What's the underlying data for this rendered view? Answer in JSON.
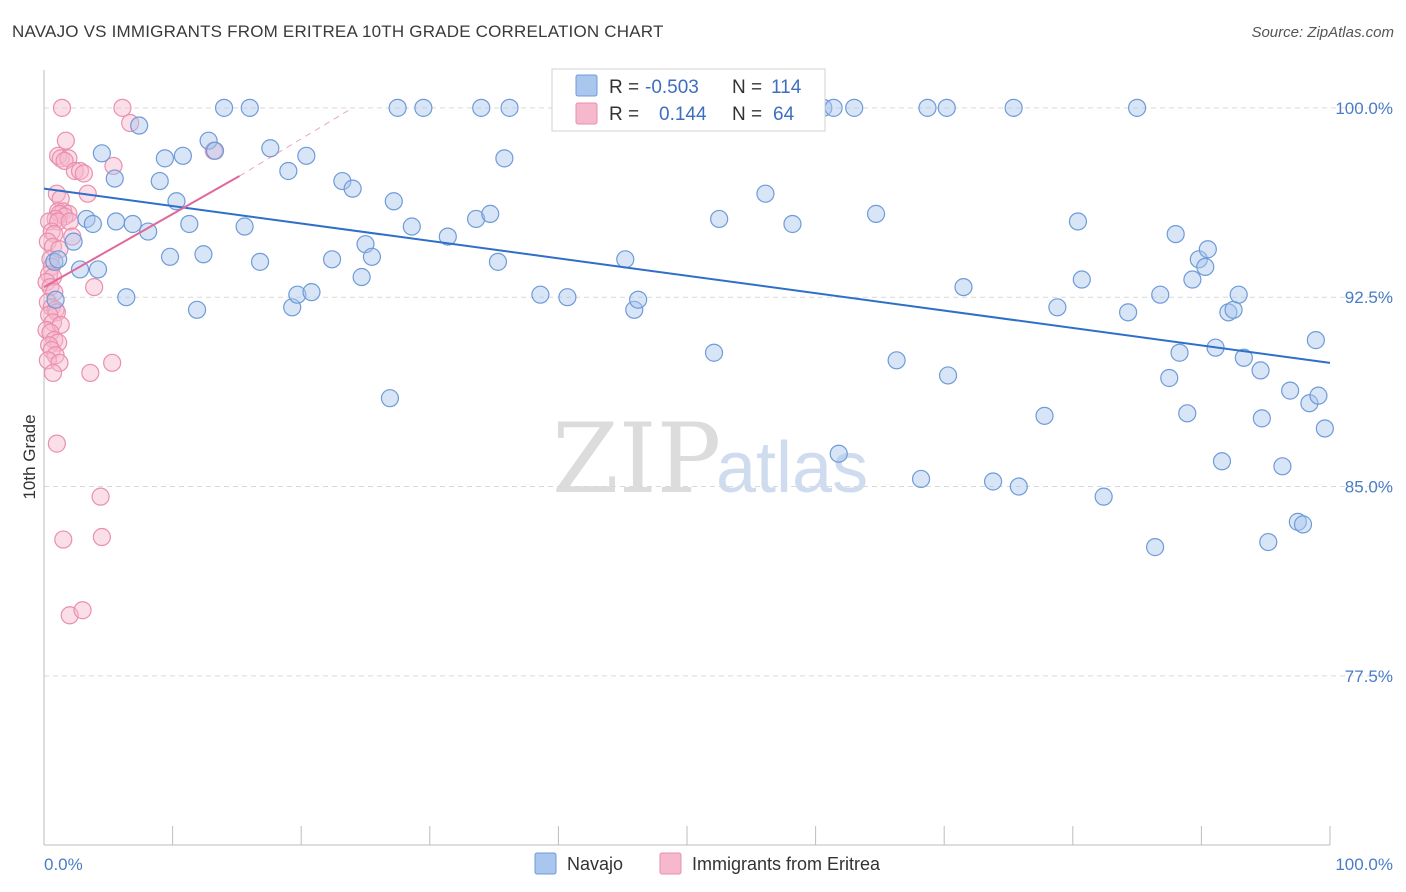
{
  "title": "NAVAJO VS IMMIGRANTS FROM ERITREA 10TH GRADE CORRELATION CHART",
  "source": "Source: ZipAtlas.com",
  "watermark": {
    "part1": "ZIP",
    "part2": "atlas"
  },
  "colors": {
    "navajo_fill": "#a9c6ee",
    "navajo_stroke": "#6f9bd8",
    "navajo_line": "#2f6fc9",
    "eritrea_fill": "#f6b8cc",
    "eritrea_stroke": "#ea8fad",
    "eritrea_line": "#e0689a",
    "axis_label": "#4a7cc7",
    "grid": "#d9d9d9"
  },
  "legend_stats": {
    "rows": [
      {
        "r_label": "R =",
        "r_value": "-0.503",
        "n_label": "N =",
        "n_value": "114"
      },
      {
        "r_label": "R =",
        "r_value": "0.144",
        "n_label": "N =",
        "n_value": "64"
      }
    ]
  },
  "chart_data": {
    "type": "scatter",
    "ylabel": "10th Grade",
    "xlim": [
      0,
      100
    ],
    "ylim": [
      70.8,
      101.5
    ],
    "x_tick_labels": [
      "0.0%",
      "100.0%"
    ],
    "y_ticks": [
      100.0,
      92.5,
      85.0,
      77.5
    ],
    "y_tick_labels": [
      "100.0%",
      "92.5%",
      "85.0%",
      "77.5%"
    ],
    "grid": true,
    "legend_position": "bottom",
    "series": [
      {
        "name": "Navajo",
        "trend": {
          "x": [
            0,
            100
          ],
          "y": [
            96.8,
            89.9
          ]
        },
        "points": [
          [
            0.8,
            93.9
          ],
          [
            0.9,
            92.4
          ],
          [
            1.1,
            94.0
          ],
          [
            2.3,
            94.7
          ],
          [
            2.8,
            93.6
          ],
          [
            3.3,
            95.6
          ],
          [
            3.8,
            95.4
          ],
          [
            4.2,
            93.6
          ],
          [
            4.5,
            98.2
          ],
          [
            5.5,
            97.2
          ],
          [
            5.6,
            95.5
          ],
          [
            6.4,
            92.5
          ],
          [
            6.9,
            95.4
          ],
          [
            7.4,
            99.3
          ],
          [
            8.1,
            95.1
          ],
          [
            9.0,
            97.1
          ],
          [
            9.4,
            98.0
          ],
          [
            9.8,
            94.1
          ],
          [
            10.3,
            96.3
          ],
          [
            10.8,
            98.1
          ],
          [
            11.3,
            95.4
          ],
          [
            11.9,
            92.0
          ],
          [
            12.4,
            94.2
          ],
          [
            12.8,
            98.7
          ],
          [
            13.3,
            98.3
          ],
          [
            14.0,
            100.0
          ],
          [
            15.6,
            95.3
          ],
          [
            16.0,
            100.0
          ],
          [
            16.8,
            93.9
          ],
          [
            17.6,
            98.4
          ],
          [
            19.0,
            97.5
          ],
          [
            19.3,
            92.1
          ],
          [
            19.7,
            92.6
          ],
          [
            20.4,
            98.1
          ],
          [
            20.8,
            92.7
          ],
          [
            22.4,
            94.0
          ],
          [
            23.2,
            97.1
          ],
          [
            24.0,
            96.8
          ],
          [
            24.7,
            93.3
          ],
          [
            25.0,
            94.6
          ],
          [
            25.5,
            94.1
          ],
          [
            26.9,
            88.5
          ],
          [
            27.2,
            96.3
          ],
          [
            27.5,
            100.0
          ],
          [
            28.6,
            95.3
          ],
          [
            29.5,
            100.0
          ],
          [
            31.4,
            94.9
          ],
          [
            33.6,
            95.6
          ],
          [
            34.0,
            100.0
          ],
          [
            34.7,
            95.8
          ],
          [
            35.3,
            93.9
          ],
          [
            35.8,
            98.0
          ],
          [
            36.2,
            100.0
          ],
          [
            38.6,
            92.6
          ],
          [
            40.7,
            92.5
          ],
          [
            45.2,
            94.0
          ],
          [
            45.9,
            92.0
          ],
          [
            46.2,
            92.4
          ],
          [
            46.9,
            100.0
          ],
          [
            47.4,
            100.0
          ],
          [
            49.5,
            100.0
          ],
          [
            52.1,
            90.3
          ],
          [
            52.5,
            95.6
          ],
          [
            54.5,
            100.0
          ],
          [
            56.1,
            96.6
          ],
          [
            58.2,
            95.4
          ],
          [
            60.6,
            100.0
          ],
          [
            61.4,
            100.0
          ],
          [
            61.8,
            86.3
          ],
          [
            63.0,
            100.0
          ],
          [
            64.7,
            95.8
          ],
          [
            66.3,
            90.0
          ],
          [
            68.2,
            85.3
          ],
          [
            68.7,
            100.0
          ],
          [
            70.2,
            100.0
          ],
          [
            70.3,
            89.4
          ],
          [
            71.5,
            92.9
          ],
          [
            73.8,
            85.2
          ],
          [
            75.4,
            100.0
          ],
          [
            75.8,
            85.0
          ],
          [
            77.8,
            87.8
          ],
          [
            78.8,
            92.1
          ],
          [
            80.4,
            95.5
          ],
          [
            80.7,
            93.2
          ],
          [
            82.4,
            84.6
          ],
          [
            84.3,
            91.9
          ],
          [
            85.0,
            100.0
          ],
          [
            86.4,
            82.6
          ],
          [
            86.8,
            92.6
          ],
          [
            87.5,
            89.3
          ],
          [
            88.0,
            95.0
          ],
          [
            88.3,
            90.3
          ],
          [
            88.9,
            87.9
          ],
          [
            89.3,
            93.2
          ],
          [
            89.8,
            94.0
          ],
          [
            90.3,
            93.7
          ],
          [
            90.5,
            94.4
          ],
          [
            91.1,
            90.5
          ],
          [
            91.6,
            86.0
          ],
          [
            92.1,
            91.9
          ],
          [
            92.5,
            92.0
          ],
          [
            92.9,
            92.6
          ],
          [
            93.3,
            90.1
          ],
          [
            94.6,
            89.6
          ],
          [
            94.7,
            87.7
          ],
          [
            95.2,
            82.8
          ],
          [
            96.3,
            85.8
          ],
          [
            96.9,
            88.8
          ],
          [
            97.5,
            83.6
          ],
          [
            97.9,
            83.5
          ],
          [
            98.4,
            88.3
          ],
          [
            98.9,
            90.8
          ],
          [
            99.1,
            88.6
          ],
          [
            99.6,
            87.3
          ]
        ]
      },
      {
        "name": "Immigrants from Eritrea",
        "trend": {
          "x": [
            0,
            15.2
          ],
          "y": [
            92.9,
            97.3
          ]
        },
        "trend_dashed": {
          "x": [
            15.2,
            24.0
          ],
          "y": [
            97.3,
            100.0
          ]
        },
        "points": [
          [
            1.4,
            100.0
          ],
          [
            6.1,
            100.0
          ],
          [
            6.7,
            99.4
          ],
          [
            1.7,
            98.7
          ],
          [
            13.2,
            98.3
          ],
          [
            1.1,
            98.1
          ],
          [
            1.3,
            98.0
          ],
          [
            1.9,
            98.0
          ],
          [
            1.6,
            97.9
          ],
          [
            5.4,
            97.7
          ],
          [
            2.4,
            97.5
          ],
          [
            2.8,
            97.5
          ],
          [
            3.1,
            97.4
          ],
          [
            1.0,
            96.6
          ],
          [
            3.4,
            96.6
          ],
          [
            1.3,
            96.4
          ],
          [
            1.1,
            95.9
          ],
          [
            1.5,
            95.9
          ],
          [
            1.9,
            95.8
          ],
          [
            1.2,
            95.8
          ],
          [
            1.6,
            95.7
          ],
          [
            0.9,
            95.6
          ],
          [
            0.4,
            95.5
          ],
          [
            1.1,
            95.5
          ],
          [
            2.0,
            95.5
          ],
          [
            0.6,
            95.1
          ],
          [
            0.8,
            95.0
          ],
          [
            2.2,
            94.9
          ],
          [
            0.3,
            94.7
          ],
          [
            0.7,
            94.5
          ],
          [
            1.2,
            94.4
          ],
          [
            0.5,
            94.0
          ],
          [
            0.6,
            93.7
          ],
          [
            0.4,
            93.4
          ],
          [
            0.7,
            93.3
          ],
          [
            0.2,
            93.1
          ],
          [
            0.5,
            92.9
          ],
          [
            0.8,
            92.7
          ],
          [
            3.9,
            92.9
          ],
          [
            0.3,
            92.3
          ],
          [
            0.6,
            92.1
          ],
          [
            0.9,
            92.0
          ],
          [
            1.0,
            91.9
          ],
          [
            0.4,
            91.8
          ],
          [
            0.7,
            91.5
          ],
          [
            1.3,
            91.4
          ],
          [
            0.2,
            91.2
          ],
          [
            0.5,
            91.1
          ],
          [
            0.8,
            90.8
          ],
          [
            1.1,
            90.7
          ],
          [
            0.4,
            90.6
          ],
          [
            0.6,
            90.4
          ],
          [
            0.9,
            90.2
          ],
          [
            0.3,
            90.0
          ],
          [
            1.2,
            89.9
          ],
          [
            5.3,
            89.9
          ],
          [
            0.7,
            89.5
          ],
          [
            3.6,
            89.5
          ],
          [
            1.0,
            86.7
          ],
          [
            4.4,
            84.6
          ],
          [
            1.5,
            82.9
          ],
          [
            4.5,
            83.0
          ],
          [
            2.0,
            79.9
          ],
          [
            3.0,
            80.1
          ]
        ]
      }
    ]
  }
}
